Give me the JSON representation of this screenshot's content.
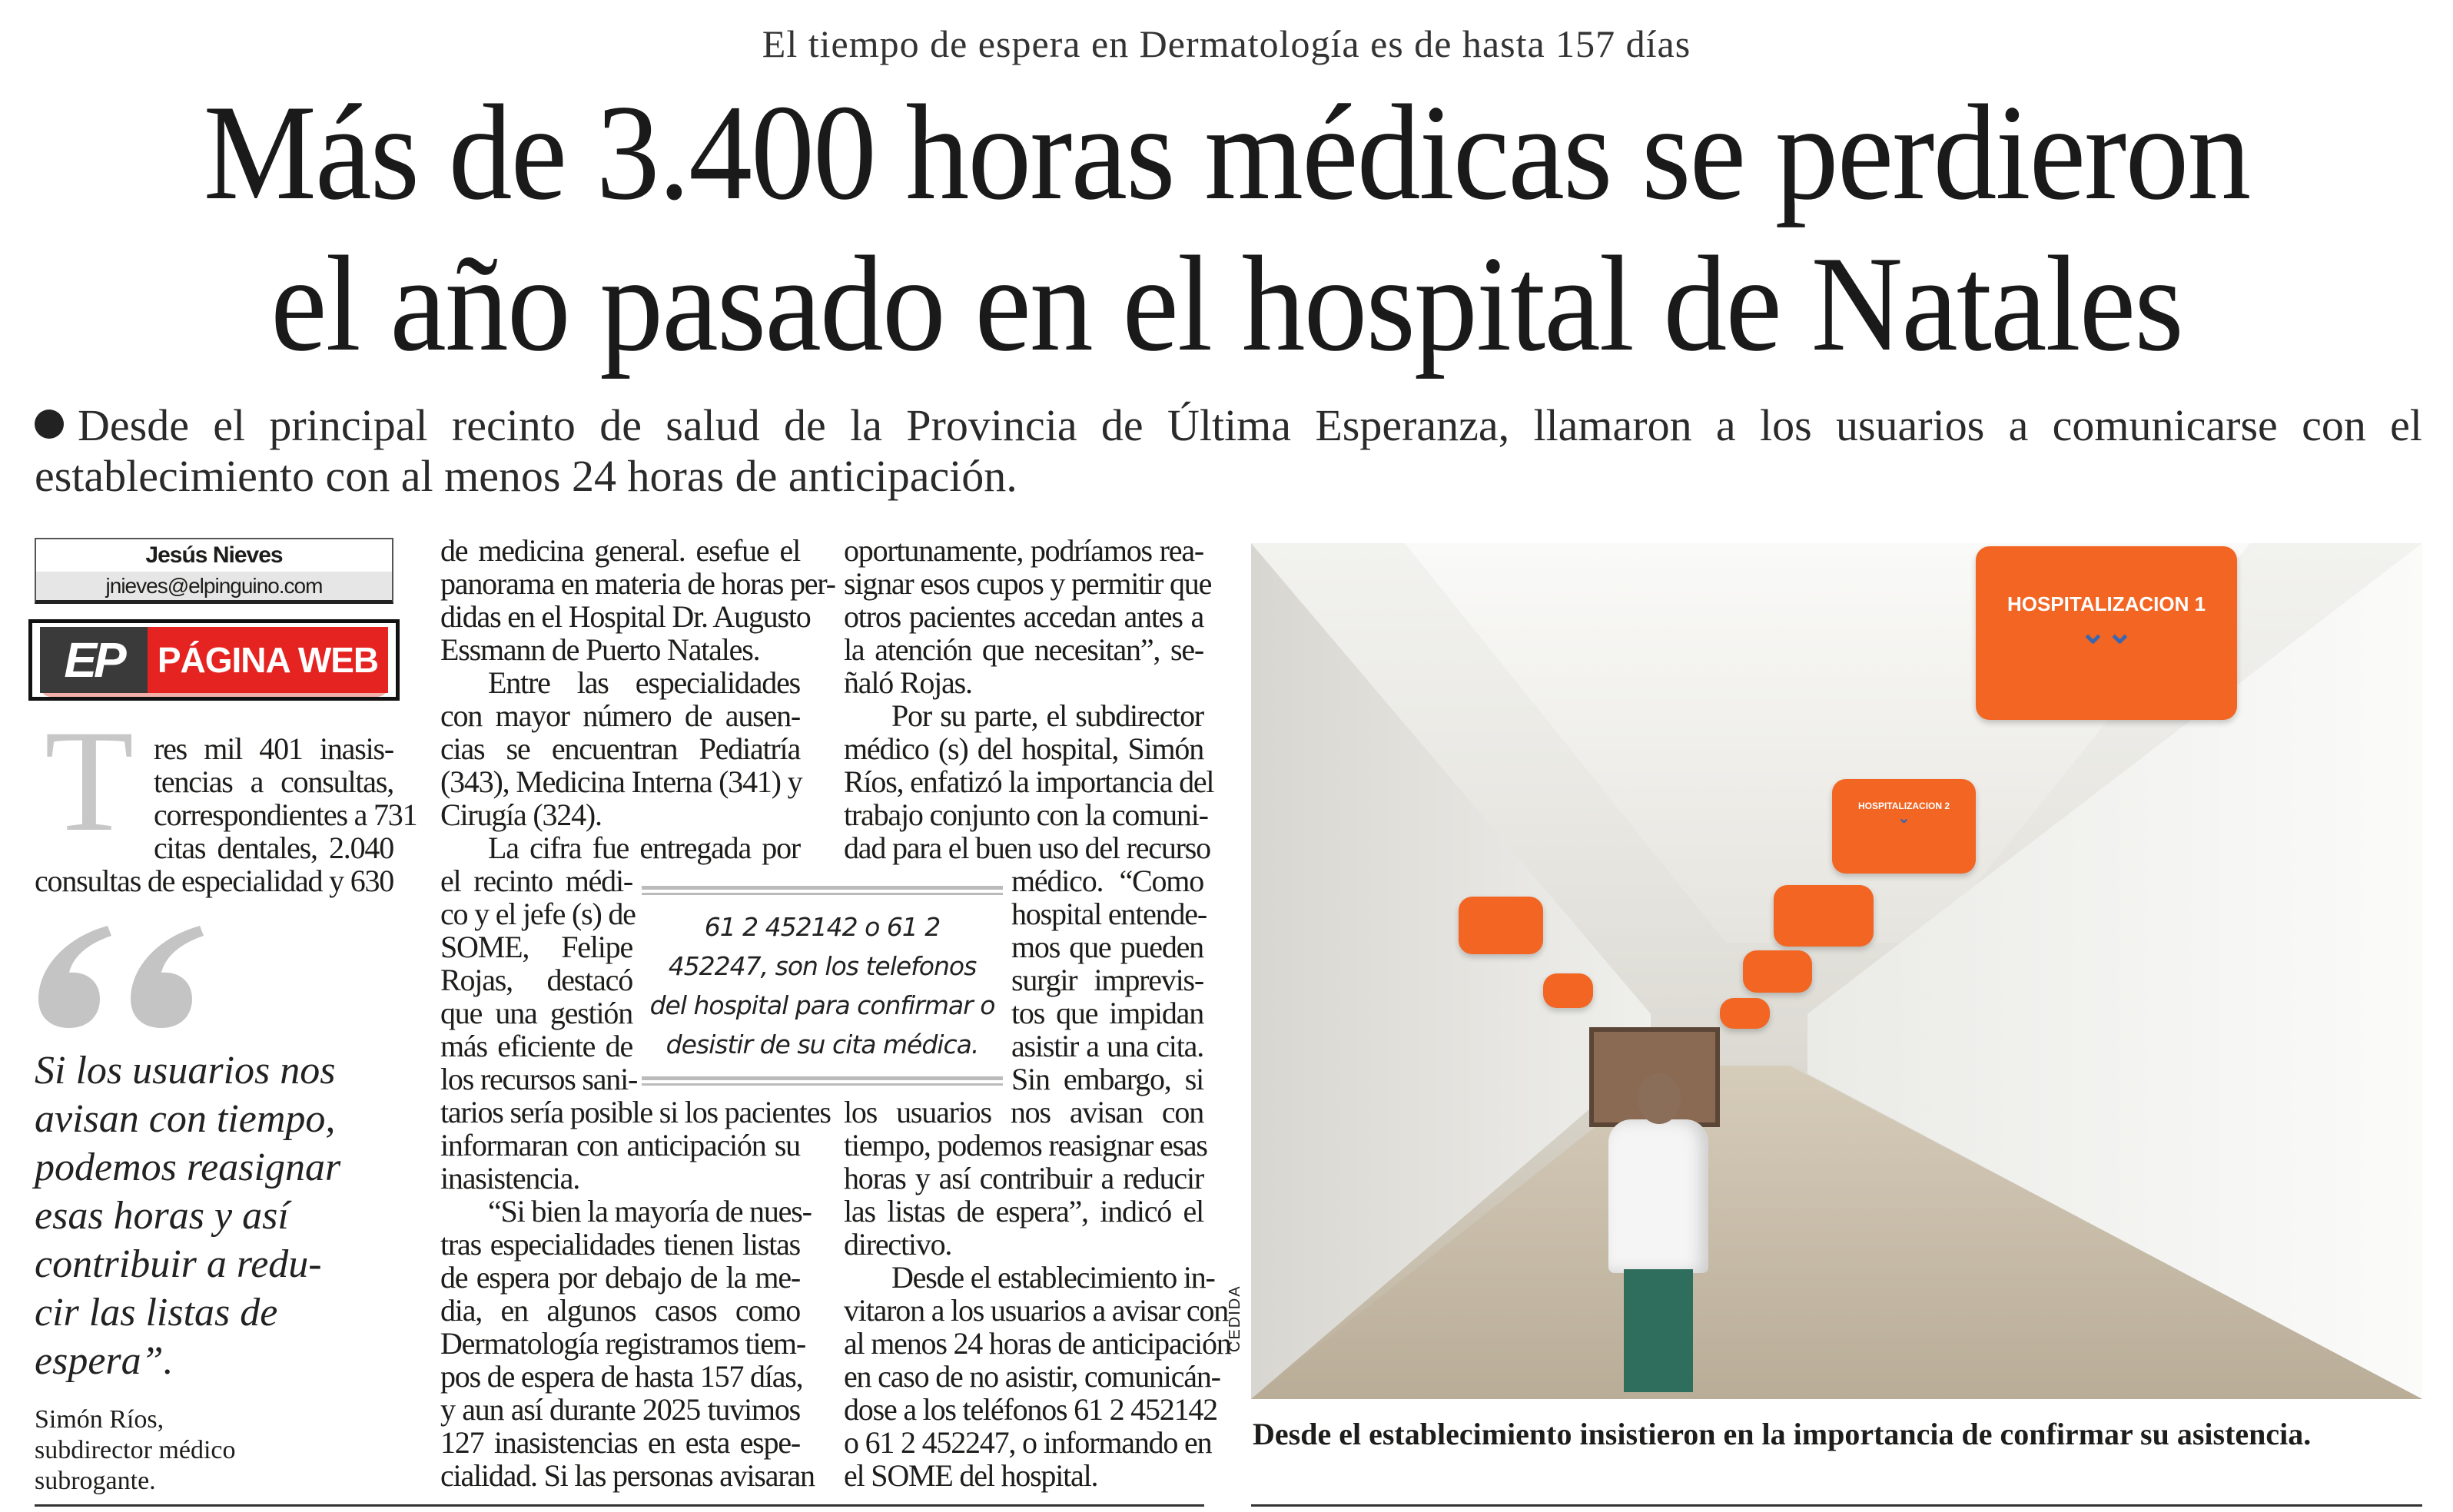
{
  "kicker": "El tiempo de espera en Dermatología es de hasta 157 días",
  "headline": {
    "line1": "Más de 3.400 horas médicas se perdieron",
    "line2": "el año pasado en el hospital de Natales"
  },
  "subheadline": {
    "line1": "Desde el principal recinto de salud de la Provincia de Última Esperanza, llamaron a los usuarios a comunicarse con el",
    "line2": "establecimiento con al menos 24 horas de anticipación."
  },
  "byline": {
    "name": "Jesús Nieves",
    "email": "jnieves@elpinguino.com"
  },
  "badge": {
    "logo": "EP",
    "label": "PÁGINA WEB",
    "colors": {
      "red": "#e52421",
      "dark": "#3a3a3a"
    }
  },
  "lead": {
    "drop_cap": "T",
    "lines": [
      "res mil 401 inasis-",
      "tencias a consultas,",
      "correspondientes a 731",
      "citas dentales, 2.040",
      "consultas de especialidad y 630"
    ]
  },
  "quote": {
    "lines": [
      "Si los usuarios nos",
      "avisan con tiempo,",
      "podemos reasignar",
      "esas horas y así",
      "contribuir a redu-",
      "cir las listas de",
      "espera”."
    ],
    "attribution": [
      "Simón Ríos,",
      "subdirector médico",
      "subrogante."
    ]
  },
  "col2": [
    "de medicina general. esefue el",
    "panorama en materia de horas per-",
    "didas en el Hospital Dr. Augusto",
    "Essmann de Puerto Natales.",
    "Entre las especialidades",
    "con mayor número de ausen-",
    "cias se encuentran Pediatría",
    "(343), Medicina Interna (341) y",
    "Cirugía (324).",
    "La cifra fue entregada por",
    "el recinto médi-",
    "co y el jefe (s) de",
    "SOME, Felipe",
    "Rojas, destacó",
    "que una gestión",
    "más eficiente de",
    "los recursos sani-",
    "tarios sería posible si los pacientes",
    "informaran con anticipación su",
    "inasistencia.",
    "“Si bien la mayoría de nues-",
    "tras especialidades tienen listas",
    "de espera por debajo de la me-",
    "dia, en algunos casos como",
    "Dermatología registramos tiem-",
    "pos de espera de hasta 157 días,",
    "y aun así durante 2025 tuvimos",
    "127 inasistencias en esta espe-",
    "cialidad. Si las personas avisaran"
  ],
  "col3": [
    "oportunamente, podríamos rea-",
    "signar esos cupos y permitir que",
    "otros pacientes accedan antes a",
    "la atención que necesitan”, se-",
    "ñaló Rojas.",
    "Por su parte, el subdirector",
    "médico (s) del hospital, Simón",
    "Ríos, enfatizó la importancia del",
    "trabajo conjunto con la comuni-",
    "dad para el buen uso del recurso",
    "médico. “Como",
    "hospital entende-",
    "mos que pueden",
    "surgir imprevis-",
    "tos que impidan",
    "asistir a una cita.",
    "Sin embargo, si",
    "los usuarios nos avisan con",
    "tiempo, podemos reasignar esas",
    "horas y así contribuir a reducir",
    "las listas de espera”, indicó el",
    "directivo.",
    "Desde el establecimiento in-",
    "vitaron a los usuarios a avisar con",
    "al menos 24 horas de anticipación",
    "en caso de no asistir, comunicán-",
    "dose a los teléfonos 61 2 452142",
    "o 61 2 452247, o informando en",
    "el SOME del hospital."
  ],
  "pullquote": [
    "61 2 452142 o 61 2",
    "452247, son los telefonos",
    "del hospital para confirmar o",
    "desistir de su cita médica."
  ],
  "photo": {
    "credit": "CEDIDA",
    "sign_main": "HOSPITALIZACION 1",
    "sign_second": "HOSPITALIZACION 2",
    "sign_color": "#f26522"
  },
  "caption": "Desde el establecimiento insistieron en la importancia de confirmar su asistencia."
}
